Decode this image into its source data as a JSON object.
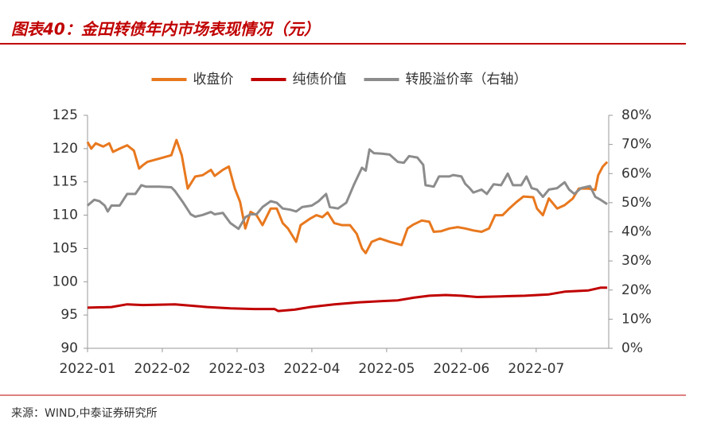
{
  "chart_data": {
    "type": "line",
    "title": "图表40：金田转债年内市场表现情况（元）",
    "source": "来源：WIND,中泰证券研究所",
    "xlim": [
      0,
      6.97
    ],
    "xticks": [
      {
        "value": 0,
        "label": "2022-01"
      },
      {
        "value": 1,
        "label": "2022-02"
      },
      {
        "value": 2,
        "label": "2022-03"
      },
      {
        "value": 3,
        "label": "2022-04"
      },
      {
        "value": 4,
        "label": "2022-05"
      },
      {
        "value": 5,
        "label": "2022-06"
      },
      {
        "value": 6,
        "label": "2022-07"
      }
    ],
    "ylim": [
      90,
      125
    ],
    "yticks": [
      90,
      95,
      100,
      105,
      110,
      115,
      120,
      125
    ],
    "y2lim": [
      0,
      80
    ],
    "y2ticks": [
      {
        "value": 0,
        "label": "0%"
      },
      {
        "value": 10,
        "label": "10%"
      },
      {
        "value": 20,
        "label": "20%"
      },
      {
        "value": 30,
        "label": "30%"
      },
      {
        "value": 40,
        "label": "40%"
      },
      {
        "value": 50,
        "label": "50%"
      },
      {
        "value": 60,
        "label": "60%"
      },
      {
        "value": 70,
        "label": "70%"
      },
      {
        "value": 80,
        "label": "80%"
      }
    ],
    "legend": "top",
    "series": [
      {
        "name": "收盘价",
        "color": "#e8781e",
        "x": [
          0,
          0.05,
          0.11,
          0.21,
          0.29,
          0.34,
          0.43,
          0.53,
          0.62,
          0.69,
          0.74,
          0.8,
          0.96,
          1.12,
          1.19,
          1.26,
          1.34,
          1.44,
          1.54,
          1.65,
          1.7,
          1.81,
          1.89,
          1.97,
          2.04,
          2.11,
          2.18,
          2.26,
          2.34,
          2.45,
          2.53,
          2.61,
          2.68,
          2.79,
          2.85,
          2.98,
          3.06,
          3.14,
          3.21,
          3.3,
          3.4,
          3.51,
          3.6,
          3.67,
          3.72,
          3.8,
          3.91,
          4.04,
          4.2,
          4.28,
          4.36,
          4.47,
          4.57,
          4.63,
          4.73,
          4.84,
          4.95,
          5.05,
          5.16,
          5.27,
          5.37,
          5.45,
          5.55,
          5.64,
          5.74,
          5.83,
          5.96,
          6.01,
          6.09,
          6.17,
          6.28,
          6.38,
          6.49,
          6.57,
          6.7,
          6.79,
          6.83,
          6.89,
          6.95
        ],
        "values": [
          121,
          120,
          120.8,
          120.3,
          120.8,
          119.5,
          120,
          120.5,
          119.7,
          117,
          117.5,
          118,
          118.5,
          119,
          121.3,
          119,
          114,
          115.8,
          116,
          116.8,
          115.9,
          116.8,
          117.3,
          114,
          112,
          108,
          110.5,
          110,
          108.5,
          111,
          111,
          108.8,
          108,
          106,
          108.5,
          109.5,
          110,
          109.7,
          110.4,
          108.8,
          108.5,
          108.5,
          107.2,
          105,
          104.3,
          106,
          106.5,
          106,
          105.5,
          108,
          108.6,
          109.2,
          109,
          107.5,
          107.6,
          108,
          108.2,
          108,
          107.7,
          107.5,
          108,
          110,
          110,
          111,
          112,
          112.8,
          112.7,
          111,
          110,
          112.5,
          111,
          111.5,
          112.5,
          114,
          114,
          113.8,
          116,
          117.3,
          118
        ]
      },
      {
        "name": "纯债价值",
        "color": "#c00000",
        "x": [
          0,
          0.32,
          0.53,
          0.74,
          1.17,
          1.38,
          1.6,
          1.91,
          2.23,
          2.5,
          2.55,
          2.77,
          2.98,
          3.3,
          3.62,
          3.94,
          4.15,
          4.36,
          4.57,
          4.79,
          5,
          5.21,
          5.53,
          5.85,
          6.17,
          6.38,
          6.7,
          6.86,
          6.95
        ],
        "values": [
          96.1,
          96.2,
          96.6,
          96.5,
          96.6,
          96.4,
          96.2,
          96,
          95.9,
          95.9,
          95.6,
          95.8,
          96.2,
          96.6,
          96.9,
          97.1,
          97.2,
          97.6,
          97.9,
          98,
          97.9,
          97.7,
          97.8,
          97.9,
          98.1,
          98.5,
          98.7,
          99.1,
          99.1
        ]
      },
      {
        "name": "转股溢价率（右轴）",
        "color": "#8c8c8c",
        "axis": "y2",
        "x": [
          0,
          0.09,
          0.16,
          0.23,
          0.27,
          0.32,
          0.43,
          0.48,
          0.53,
          0.64,
          0.72,
          0.78,
          0.96,
          1.12,
          1.17,
          1.28,
          1.38,
          1.44,
          1.54,
          1.65,
          1.7,
          1.81,
          1.91,
          2.02,
          2.11,
          2.18,
          2.26,
          2.34,
          2.45,
          2.53,
          2.61,
          2.71,
          2.79,
          2.87,
          3,
          3.09,
          3.19,
          3.24,
          3.35,
          3.46,
          3.56,
          3.67,
          3.72,
          3.77,
          3.83,
          3.94,
          4.04,
          4.15,
          4.23,
          4.3,
          4.41,
          4.49,
          4.52,
          4.63,
          4.7,
          4.84,
          4.89,
          5,
          5.05,
          5.11,
          5.16,
          5.27,
          5.34,
          5.43,
          5.53,
          5.62,
          5.69,
          5.8,
          5.87,
          5.94,
          6.01,
          6.09,
          6.17,
          6.28,
          6.38,
          6.44,
          6.51,
          6.6,
          6.72,
          6.79,
          6.86,
          6.95
        ],
        "values": [
          49,
          51,
          50.5,
          49,
          47,
          49,
          49,
          51,
          53,
          53,
          56,
          55.5,
          55.5,
          55.3,
          54,
          50,
          46,
          45.2,
          45.8,
          46.8,
          46,
          46.5,
          43,
          41,
          45,
          46,
          46,
          48.5,
          50.5,
          50,
          48,
          47.6,
          47,
          48.5,
          49,
          50.5,
          53,
          48.5,
          48,
          50,
          56,
          62,
          61,
          68.3,
          67,
          66.8,
          66.5,
          64,
          63.7,
          66,
          65.5,
          63,
          56,
          55.5,
          59,
          59,
          59.5,
          59,
          56.5,
          55,
          53.5,
          54.5,
          53,
          56.3,
          56,
          60,
          56,
          56,
          59,
          55,
          54.5,
          52,
          54.5,
          55,
          57,
          54.5,
          53,
          55,
          55.7,
          52,
          51,
          49.5
        ]
      }
    ]
  }
}
